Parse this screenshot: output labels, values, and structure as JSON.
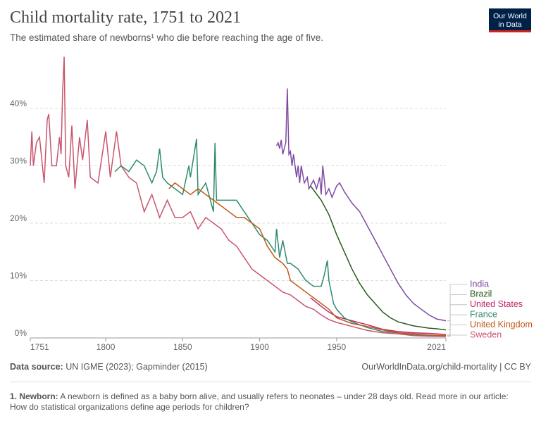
{
  "chart_data": {
    "type": "line",
    "title": "Child mortality rate, 1751 to 2021",
    "subtitle": "The estimated share of newborns¹ who die before reaching the age of five.",
    "logo": [
      "Our World",
      "in Data"
    ],
    "xlim": [
      1751,
      2021
    ],
    "xticks": [
      1751,
      1800,
      1850,
      1900,
      1950,
      2021
    ],
    "ylim": [
      0,
      50
    ],
    "yticks": [
      {
        "value": 0,
        "label": "0%"
      },
      {
        "value": 10,
        "label": "10%"
      },
      {
        "value": 20,
        "label": "20%"
      },
      {
        "value": 30,
        "label": "30%"
      },
      {
        "value": 40,
        "label": "40%"
      }
    ],
    "grid": true,
    "series": [
      {
        "name": "India",
        "color": "#7e4ba3",
        "x": [
          1911,
          1912,
          1913,
          1914,
          1915,
          1917,
          1918,
          1919,
          1920,
          1921,
          1922,
          1924,
          1925,
          1926,
          1927,
          1929,
          1931,
          1932,
          1935,
          1937,
          1939,
          1940,
          1941,
          1943,
          1945,
          1947,
          1950,
          1952,
          1955,
          1960,
          1965,
          1970,
          1975,
          1980,
          1985,
          1990,
          1995,
          2000,
          2005,
          2010,
          2015,
          2021
        ],
        "values": [
          33.5,
          34,
          33,
          34.5,
          32,
          34,
          43.5,
          32,
          32.5,
          30,
          32,
          28,
          30,
          27,
          30,
          27,
          28,
          26,
          27.5,
          26,
          28,
          25,
          30,
          25,
          26,
          24.5,
          26.5,
          27,
          25.5,
          23.5,
          22,
          19.5,
          17,
          14.5,
          12,
          9.5,
          7.5,
          6,
          5,
          4,
          3.3,
          3
        ]
      },
      {
        "name": "Brazil",
        "color": "#2a5a1c",
        "x": [
          1933,
          1940,
          1945,
          1950,
          1955,
          1960,
          1965,
          1970,
          1975,
          1980,
          1985,
          1990,
          2000,
          2010,
          2015,
          2021
        ],
        "values": [
          26.5,
          24,
          21.5,
          18,
          15,
          12,
          9.5,
          7.5,
          6,
          4.5,
          3.5,
          2.8,
          2.1,
          1.7,
          1.6,
          1.4
        ]
      },
      {
        "name": "United States",
        "color": "#c2256a",
        "x": [
          1933,
          1940,
          1945,
          1950,
          1960,
          1970,
          1980,
          1990,
          2000,
          2010,
          2021
        ],
        "values": [
          7,
          5.5,
          4.5,
          3.7,
          3,
          2.3,
          1.5,
          1.1,
          0.9,
          0.8,
          0.6
        ]
      },
      {
        "name": "France",
        "color": "#2e8b6e",
        "x": [
          1806,
          1810,
          1815,
          1820,
          1825,
          1830,
          1833,
          1835,
          1837,
          1840,
          1845,
          1850,
          1854,
          1855,
          1859,
          1860,
          1865,
          1870,
          1871,
          1872,
          1875,
          1880,
          1885,
          1890,
          1895,
          1900,
          1905,
          1910,
          1911,
          1913,
          1915,
          1918,
          1920,
          1925,
          1930,
          1935,
          1940,
          1942,
          1944,
          1945,
          1948,
          1950,
          1955,
          1960,
          1970,
          1980,
          1990,
          2000,
          2010,
          2021
        ],
        "values": [
          29,
          30,
          29,
          31,
          30,
          27,
          29,
          33,
          28,
          27,
          26,
          25,
          30,
          28,
          34.7,
          25,
          27,
          22,
          34,
          24,
          24,
          24,
          24,
          22,
          20,
          18,
          17,
          15,
          19,
          14,
          17,
          13,
          13,
          12,
          10,
          9,
          9,
          11,
          13.5,
          10,
          6,
          5,
          3.5,
          2.8,
          1.8,
          1.1,
          0.9,
          0.5,
          0.4,
          0.4
        ]
      },
      {
        "name": "United Kingdom",
        "color": "#c05917",
        "x": [
          1841,
          1845,
          1850,
          1855,
          1860,
          1865,
          1870,
          1875,
          1880,
          1885,
          1890,
          1895,
          1900,
          1905,
          1910,
          1915,
          1918,
          1920,
          1925,
          1930,
          1935,
          1940,
          1945,
          1950,
          1960,
          1970,
          1980,
          1990,
          2000,
          2010,
          2021
        ],
        "values": [
          26,
          27,
          26,
          25,
          26,
          25,
          24,
          23,
          22,
          21,
          21,
          20,
          19,
          16,
          14,
          13,
          12,
          10,
          9,
          8,
          7,
          6,
          5,
          3.5,
          2.5,
          2,
          1.4,
          0.9,
          0.7,
          0.5,
          0.4
        ]
      },
      {
        "name": "Sweden",
        "color": "#c8566c",
        "x": [
          1751,
          1752,
          1753,
          1755,
          1757,
          1760,
          1762,
          1763,
          1765,
          1768,
          1770,
          1771,
          1772,
          1773,
          1774,
          1776,
          1778,
          1780,
          1783,
          1785,
          1788,
          1790,
          1795,
          1800,
          1803,
          1807,
          1810,
          1815,
          1820,
          1825,
          1830,
          1835,
          1840,
          1845,
          1850,
          1855,
          1860,
          1865,
          1870,
          1875,
          1880,
          1885,
          1890,
          1895,
          1900,
          1905,
          1910,
          1915,
          1920,
          1925,
          1930,
          1935,
          1940,
          1945,
          1950,
          1960,
          1970,
          1980,
          1990,
          2000,
          2010,
          2021
        ],
        "values": [
          30,
          36,
          30,
          34,
          35,
          27,
          38,
          39,
          30,
          30,
          35,
          32,
          43,
          49,
          30,
          28,
          37,
          26,
          35,
          31,
          38,
          28,
          27,
          36,
          28,
          36,
          30,
          28,
          27,
          22,
          25,
          21,
          24,
          21,
          21,
          22,
          19,
          21,
          20,
          19,
          17,
          16,
          14,
          12,
          11,
          10,
          9,
          8,
          7.5,
          6.5,
          5.5,
          5,
          4,
          3.2,
          2.7,
          2,
          1.3,
          0.9,
          0.7,
          0.4,
          0.3,
          0.25
        ]
      }
    ],
    "source_label": "Data source:",
    "source": "UN IGME (2023); Gapminder (2015)",
    "url": "OurWorldInData.org/child-mortality | CC BY",
    "footnote_label": "1. Newborn:",
    "footnote": "A newborn is defined as a baby born alive, and usually refers to neonates – under 28 days old. Read more in our article: How do statistical organizations define age periods for children?"
  }
}
